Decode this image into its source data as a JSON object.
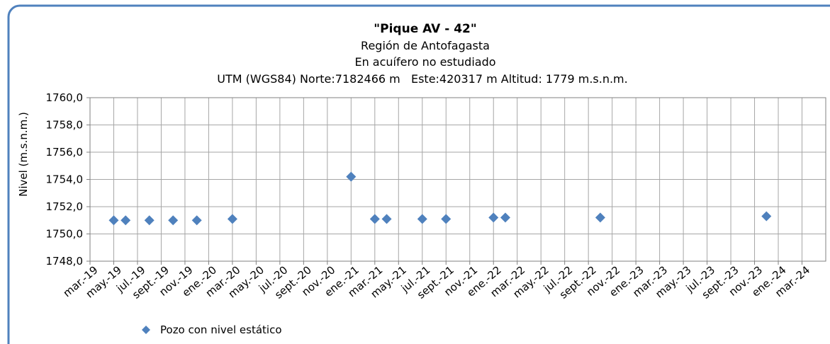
{
  "chart_data": {
    "type": "scatter",
    "title": "\"Pique AV - 42\"",
    "subtitle": [
      "Región de Antofagasta",
      "En acuífero no estudiado",
      "UTM (WGS84) Norte:7182466 m   Este:420317 m Altitud: 1779 m.s.n.m."
    ],
    "y_label": "Nivel (m.s.n.m.)",
    "xlim": [
      "2019-03",
      "2024-05"
    ],
    "xticks": [
      {
        "value": "2019-03",
        "label": "mar.-19"
      },
      {
        "value": "2019-05",
        "label": "may.-19"
      },
      {
        "value": "2019-07",
        "label": "jul.-19"
      },
      {
        "value": "2019-09",
        "label": "sept.-19"
      },
      {
        "value": "2019-11",
        "label": "nov.-19"
      },
      {
        "value": "2020-01",
        "label": "ene.-20"
      },
      {
        "value": "2020-03",
        "label": "mar.-20"
      },
      {
        "value": "2020-05",
        "label": "may.-20"
      },
      {
        "value": "2020-07",
        "label": "jul.-20"
      },
      {
        "value": "2020-09",
        "label": "sept.-20"
      },
      {
        "value": "2020-11",
        "label": "nov.-20"
      },
      {
        "value": "2021-01",
        "label": "ene.-21"
      },
      {
        "value": "2021-03",
        "label": "mar.-21"
      },
      {
        "value": "2021-05",
        "label": "may.-21"
      },
      {
        "value": "2021-07",
        "label": "jul.-21"
      },
      {
        "value": "2021-09",
        "label": "sept.-21"
      },
      {
        "value": "2021-11",
        "label": "nov.-21"
      },
      {
        "value": "2022-01",
        "label": "ene.-22"
      },
      {
        "value": "2022-03",
        "label": "mar.-22"
      },
      {
        "value": "2022-05",
        "label": "may.-22"
      },
      {
        "value": "2022-07",
        "label": "jul.-22"
      },
      {
        "value": "2022-09",
        "label": "sept.-22"
      },
      {
        "value": "2022-11",
        "label": "nov.-22"
      },
      {
        "value": "2023-01",
        "label": "ene.-23"
      },
      {
        "value": "2023-03",
        "label": "mar.-23"
      },
      {
        "value": "2023-05",
        "label": "may.-23"
      },
      {
        "value": "2023-07",
        "label": "jul.-23"
      },
      {
        "value": "2023-09",
        "label": "sept.-23"
      },
      {
        "value": "2023-11",
        "label": "nov.-23"
      },
      {
        "value": "2024-01",
        "label": "ene.-24"
      },
      {
        "value": "2024-03",
        "label": "mar.-24"
      }
    ],
    "ylim": [
      1748,
      1760
    ],
    "yticks": [
      {
        "value": 1748,
        "label": "1748,0"
      },
      {
        "value": 1750,
        "label": "1750,0"
      },
      {
        "value": 1752,
        "label": "1752,0"
      },
      {
        "value": 1754,
        "label": "1754,0"
      },
      {
        "value": 1756,
        "label": "1756,0"
      },
      {
        "value": 1758,
        "label": "1758,0"
      },
      {
        "value": 1760,
        "label": "1760,0"
      }
    ],
    "grid": true,
    "legend": "bottom-left",
    "series": [
      {
        "name": "Pozo con nivel estático",
        "color": "#4f81bd",
        "x": [
          "2019-05",
          "2019-06",
          "2019-08",
          "2019-10",
          "2019-12",
          "2020-03",
          "2021-01",
          "2021-03",
          "2021-04",
          "2021-07",
          "2021-09",
          "2022-01",
          "2022-02",
          "2022-10",
          "2023-12"
        ],
        "values": [
          1751.0,
          1751.0,
          1751.0,
          1751.0,
          1751.0,
          1751.1,
          1754.2,
          1751.1,
          1751.1,
          1751.1,
          1751.1,
          1751.2,
          1751.2,
          1751.2,
          1751.3
        ]
      }
    ]
  }
}
